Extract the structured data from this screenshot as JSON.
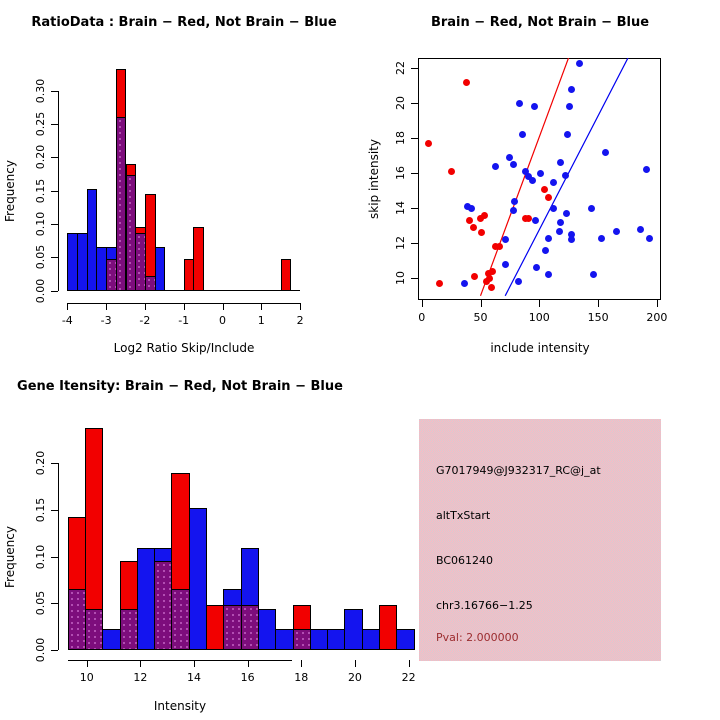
{
  "colors": {
    "red": "#f20000",
    "blue": "#1414ef",
    "overlap_purple": "#7d0d7c",
    "line_red": "#f20000",
    "line_blue": "#0000f0",
    "pink_bg": "#eabfca",
    "pval_text": "#9b2d30",
    "axis": "#000000"
  },
  "chart_data": [
    {
      "type": "bar",
      "name": "ratio-histogram",
      "title": "RatioData : Brain − Red, Not Brain − Blue",
      "xlabel": "Log2 Ratio Skip/Include",
      "ylabel": "Frequency",
      "x_ticks": [
        "-4",
        "-3",
        "-2",
        "-1",
        "0",
        "1",
        "2"
      ],
      "x_tick_values": [
        -4,
        -3,
        -2,
        -1,
        0,
        1,
        2
      ],
      "y_ticks": [
        "0.00",
        "0.05",
        "0.10",
        "0.15",
        "0.20",
        "0.25",
        "0.30"
      ],
      "y_tick_values": [
        0.0,
        0.05,
        0.1,
        0.15,
        0.2,
        0.25,
        0.3
      ],
      "xlim": [
        -4,
        2
      ],
      "ylim": [
        0,
        0.3
      ],
      "bin_start": -4.0,
      "bin_width": 0.25,
      "legend_note": "red = Brain frequency, blue = Not Brain frequency, purple = overlap",
      "bars": [
        {
          "blue": 0.087,
          "red": 0
        },
        {
          "blue": 0.087,
          "red": 0
        },
        {
          "blue": 0.152,
          "red": 0
        },
        {
          "blue": 0.065,
          "red": 0
        },
        {
          "blue": 0.065,
          "red": 0.048
        },
        {
          "blue": 0.261,
          "red": 0.333
        },
        {
          "blue": 0.174,
          "red": 0.19
        },
        {
          "blue": 0.087,
          "red": 0.096
        },
        {
          "blue": 0.022,
          "red": 0.145
        },
        {
          "blue": 0.065,
          "red": 0
        },
        {
          "blue": 0,
          "red": 0
        },
        {
          "blue": 0,
          "red": 0
        },
        {
          "blue": 0,
          "red": 0.048
        },
        {
          "blue": 0,
          "red": 0.096
        },
        {
          "blue": 0,
          "red": 0
        },
        {
          "blue": 0,
          "red": 0
        },
        {
          "blue": 0,
          "red": 0
        },
        {
          "blue": 0,
          "red": 0
        },
        {
          "blue": 0,
          "red": 0
        },
        {
          "blue": 0,
          "red": 0
        },
        {
          "blue": 0,
          "red": 0
        },
        {
          "blue": 0,
          "red": 0
        },
        {
          "blue": 0,
          "red": 0.048
        },
        {
          "blue": 0,
          "red": 0
        }
      ]
    },
    {
      "type": "scatter",
      "name": "intensity-scatter",
      "title": "Brain − Red, Not Brain − Blue",
      "xlabel": "include intensity",
      "ylabel": "skip intensity",
      "x_ticks": [
        "0",
        "50",
        "100",
        "150",
        "200"
      ],
      "x_tick_values": [
        0,
        50,
        100,
        150,
        200
      ],
      "y_ticks": [
        "10",
        "12",
        "14",
        "16",
        "18",
        "20",
        "22"
      ],
      "y_tick_values": [
        10,
        12,
        14,
        16,
        18,
        20,
        22
      ],
      "xlim": [
        -3,
        204
      ],
      "ylim": [
        8.7,
        22.8
      ],
      "red_points": [
        [
          6,
          17.7
        ],
        [
          15,
          9.7
        ],
        [
          25,
          16.1
        ],
        [
          38,
          21.2
        ],
        [
          41,
          13.3
        ],
        [
          44,
          12.9
        ],
        [
          45,
          10.1
        ],
        [
          50,
          13.4
        ],
        [
          51,
          12.6
        ],
        [
          53,
          13.6
        ],
        [
          55,
          9.8
        ],
        [
          57,
          10.3
        ],
        [
          58,
          10.0
        ],
        [
          59,
          9.5
        ],
        [
          60,
          10.4
        ],
        [
          63,
          11.8
        ],
        [
          66,
          11.8
        ],
        [
          88,
          13.4
        ],
        [
          91,
          13.4
        ],
        [
          104,
          15.1
        ],
        [
          108,
          14.6
        ]
      ],
      "blue_points": [
        [
          36,
          9.7
        ],
        [
          39,
          14.1
        ],
        [
          42,
          14.0
        ],
        [
          63,
          16.4
        ],
        [
          71,
          12.2
        ],
        [
          71,
          10.8
        ],
        [
          75,
          16.9
        ],
        [
          78,
          16.5
        ],
        [
          78,
          13.9
        ],
        [
          79,
          14.4
        ],
        [
          82,
          9.8
        ],
        [
          83,
          20.0
        ],
        [
          86,
          18.2
        ],
        [
          88,
          16.1
        ],
        [
          91,
          15.8
        ],
        [
          94,
          15.6
        ],
        [
          96,
          19.8
        ],
        [
          97,
          13.3
        ],
        [
          98,
          10.6
        ],
        [
          101,
          16.0
        ],
        [
          105,
          11.6
        ],
        [
          108,
          12.3
        ],
        [
          108,
          10.2
        ],
        [
          112,
          15.5
        ],
        [
          112,
          14.0
        ],
        [
          117,
          12.7
        ],
        [
          118,
          16.6
        ],
        [
          118,
          13.2
        ],
        [
          122,
          15.9
        ],
        [
          123,
          13.7
        ],
        [
          124,
          18.2
        ],
        [
          126,
          19.8
        ],
        [
          127,
          20.8
        ],
        [
          127,
          12.5
        ],
        [
          127,
          12.2
        ],
        [
          134,
          22.3
        ],
        [
          144,
          14.0
        ],
        [
          146,
          10.2
        ],
        [
          153,
          12.3
        ],
        [
          156,
          17.2
        ],
        [
          166,
          12.7
        ],
        [
          186,
          12.8
        ],
        [
          191,
          16.2
        ],
        [
          194,
          12.3
        ]
      ],
      "red_line": [
        [
          50,
          9.0
        ],
        [
          126,
          22.8
        ]
      ],
      "blue_line": [
        [
          71,
          9.0
        ],
        [
          177,
          22.8
        ]
      ]
    },
    {
      "type": "bar",
      "name": "gene-intensity-histogram",
      "title": "Gene Itensity: Brain − Red, Not Brain − Blue",
      "xlabel": "Intensity",
      "ylabel": "Frequency",
      "x_ticks": [
        "10",
        "12",
        "14",
        "16",
        "18",
        "20",
        "22"
      ],
      "x_tick_values": [
        10,
        12,
        14,
        16,
        18,
        20,
        22
      ],
      "y_ticks": [
        "0.00",
        "0.05",
        "0.10",
        "0.15",
        "0.20"
      ],
      "y_tick_values": [
        0.0,
        0.05,
        0.1,
        0.15,
        0.2
      ],
      "xlim": [
        9.35,
        22.25
      ],
      "ylim": [
        0,
        0.24
      ],
      "bin_start": 9.35,
      "bin_width": 0.645,
      "legend_note": "red = Brain frequency, blue = Not Brain frequency, purple = overlap",
      "bars": [
        {
          "blue": 0.065,
          "red": 0.143
        },
        {
          "blue": 0.044,
          "red": 0.238
        },
        {
          "blue": 0.022,
          "red": 0
        },
        {
          "blue": 0.044,
          "red": 0.095
        },
        {
          "blue": 0.109,
          "red": 0
        },
        {
          "blue": 0.109,
          "red": 0.095
        },
        {
          "blue": 0.065,
          "red": 0.19
        },
        {
          "blue": 0.152,
          "red": 0
        },
        {
          "blue": 0,
          "red": 0.048
        },
        {
          "blue": 0.065,
          "red": 0.048
        },
        {
          "blue": 0.109,
          "red": 0.048
        },
        {
          "blue": 0.044,
          "red": 0
        },
        {
          "blue": 0.022,
          "red": 0
        },
        {
          "blue": 0.022,
          "red": 0.048
        },
        {
          "blue": 0.022,
          "red": 0
        },
        {
          "blue": 0.022,
          "red": 0
        },
        {
          "blue": 0.044,
          "red": 0
        },
        {
          "blue": 0.022,
          "red": 0
        },
        {
          "blue": 0,
          "red": 0.048
        },
        {
          "blue": 0.022,
          "red": 0
        }
      ]
    }
  ],
  "info_box": {
    "lines": [
      "G7017949@J932317_RC@j_at",
      "altTxStart",
      "BC061240",
      "chr3.16766−1.25"
    ],
    "pval_line": "Pval: 2.000000"
  }
}
